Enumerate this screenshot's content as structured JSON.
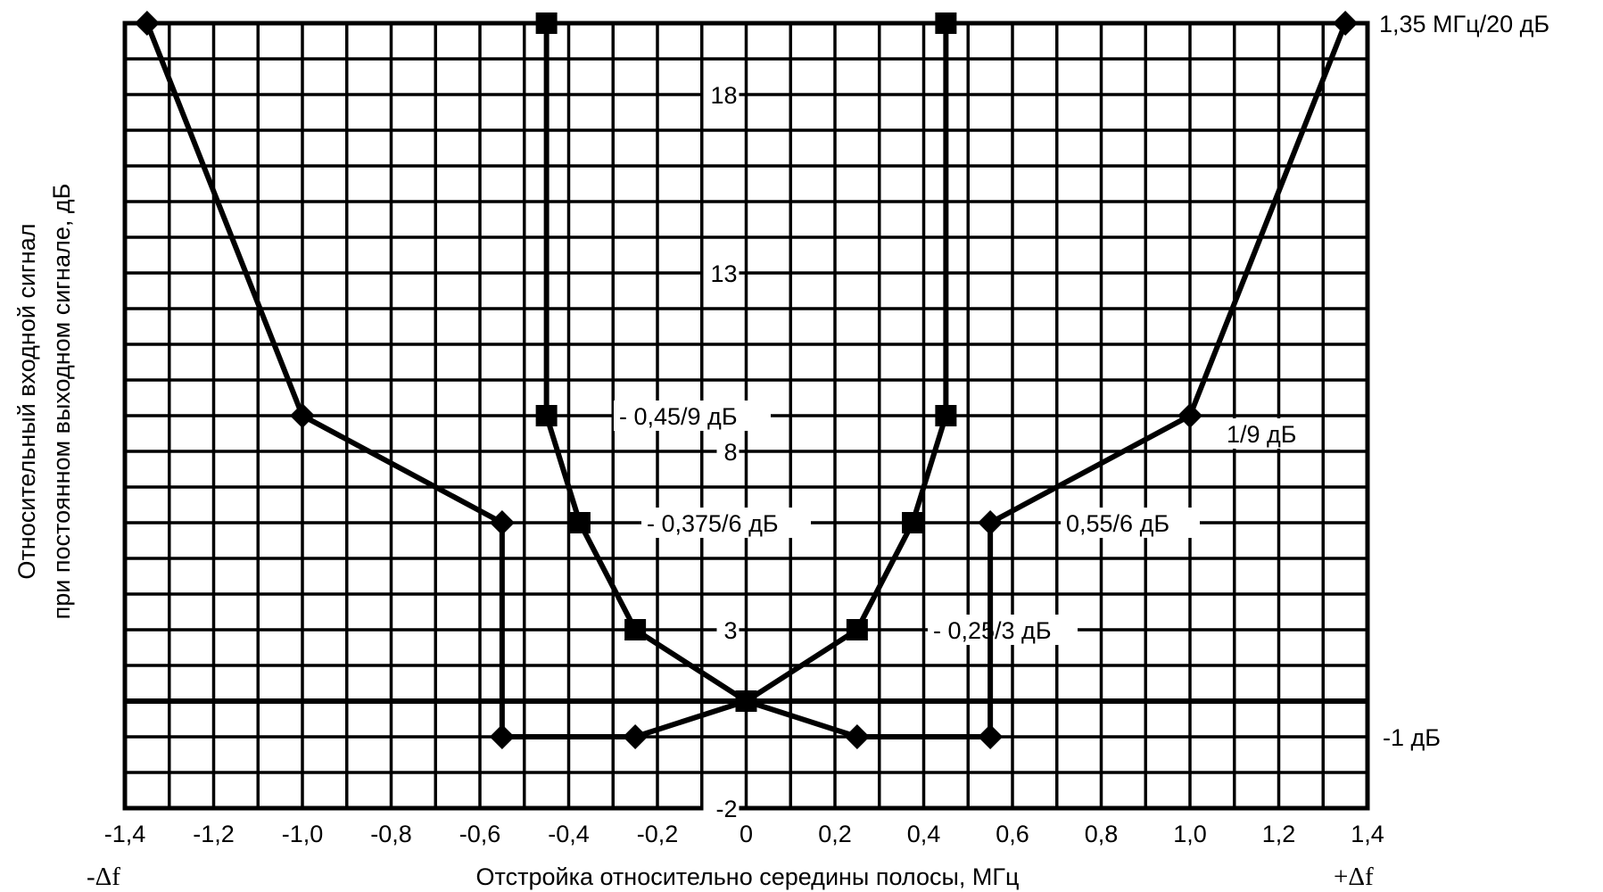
{
  "chart_data": {
    "type": "line",
    "xlabel": "Отстройка относительно середины полосы, МГц",
    "ylabel_line1": "Относительный входной сигнал",
    "ylabel_line2": "при постоянном выходном сигнале, дБ",
    "xlim": [
      -1.4,
      1.4
    ],
    "ylim": [
      -2,
      20
    ],
    "grid": true,
    "x_tick_labels": [
      {
        "value": -1.4,
        "label": "-1,4"
      },
      {
        "value": -1.2,
        "label": "-1,2"
      },
      {
        "value": -1.0,
        "label": "-1,0"
      },
      {
        "value": -0.8,
        "label": "-0,8"
      },
      {
        "value": -0.6,
        "label": "-0,6"
      },
      {
        "value": -0.4,
        "label": "-0,4"
      },
      {
        "value": -0.2,
        "label": "-0,2"
      },
      {
        "value": 0,
        "label": "0"
      },
      {
        "value": 0.2,
        "label": "0,2"
      },
      {
        "value": 0.4,
        "label": "0,4"
      },
      {
        "value": 0.6,
        "label": "0,6"
      },
      {
        "value": 0.8,
        "label": "0,8"
      },
      {
        "value": 1.0,
        "label": "1,0"
      },
      {
        "value": 1.2,
        "label": "1,2"
      },
      {
        "value": 1.4,
        "label": "1,4"
      }
    ],
    "y_tick_labels": [
      {
        "value": 18,
        "label": "18"
      },
      {
        "value": 13,
        "label": "13"
      },
      {
        "value": 8,
        "label": "8"
      },
      {
        "value": 3,
        "label": "3"
      },
      {
        "value": -2,
        "label": "-2"
      }
    ],
    "x_end_labels": {
      "left": "-Δf",
      "right": "+Δf"
    },
    "series": [
      {
        "marker": "diamond",
        "x": [
          -1.35,
          -1.0,
          -0.55,
          -0.55,
          -0.25,
          0,
          0.25,
          0.55,
          0.55,
          1.0,
          1.35
        ],
        "y": [
          20,
          9,
          6,
          0,
          0,
          1,
          0,
          0,
          6,
          9,
          20
        ]
      },
      {
        "marker": "square",
        "x": [
          -0.45,
          -0.45,
          -0.375,
          -0.25,
          0,
          0.25,
          0.375,
          0.45,
          0.45
        ],
        "y": [
          20,
          9,
          6,
          3,
          1,
          3,
          6,
          9,
          20
        ]
      }
    ],
    "annotations": [
      {
        "text": "1,35 МГц/20 дБ",
        "y": 20
      },
      {
        "text": "- 0,45/9 дБ",
        "y": 9
      },
      {
        "text": "1/9 дБ",
        "y": 8.5
      },
      {
        "text": "- 0,375/6 дБ",
        "y": 6
      },
      {
        "text": "0,55/6 дБ",
        "y": 6
      },
      {
        "text": "- 0,25/3 дБ",
        "y": 3
      },
      {
        "text": "-1 дБ",
        "y": 0
      }
    ]
  }
}
